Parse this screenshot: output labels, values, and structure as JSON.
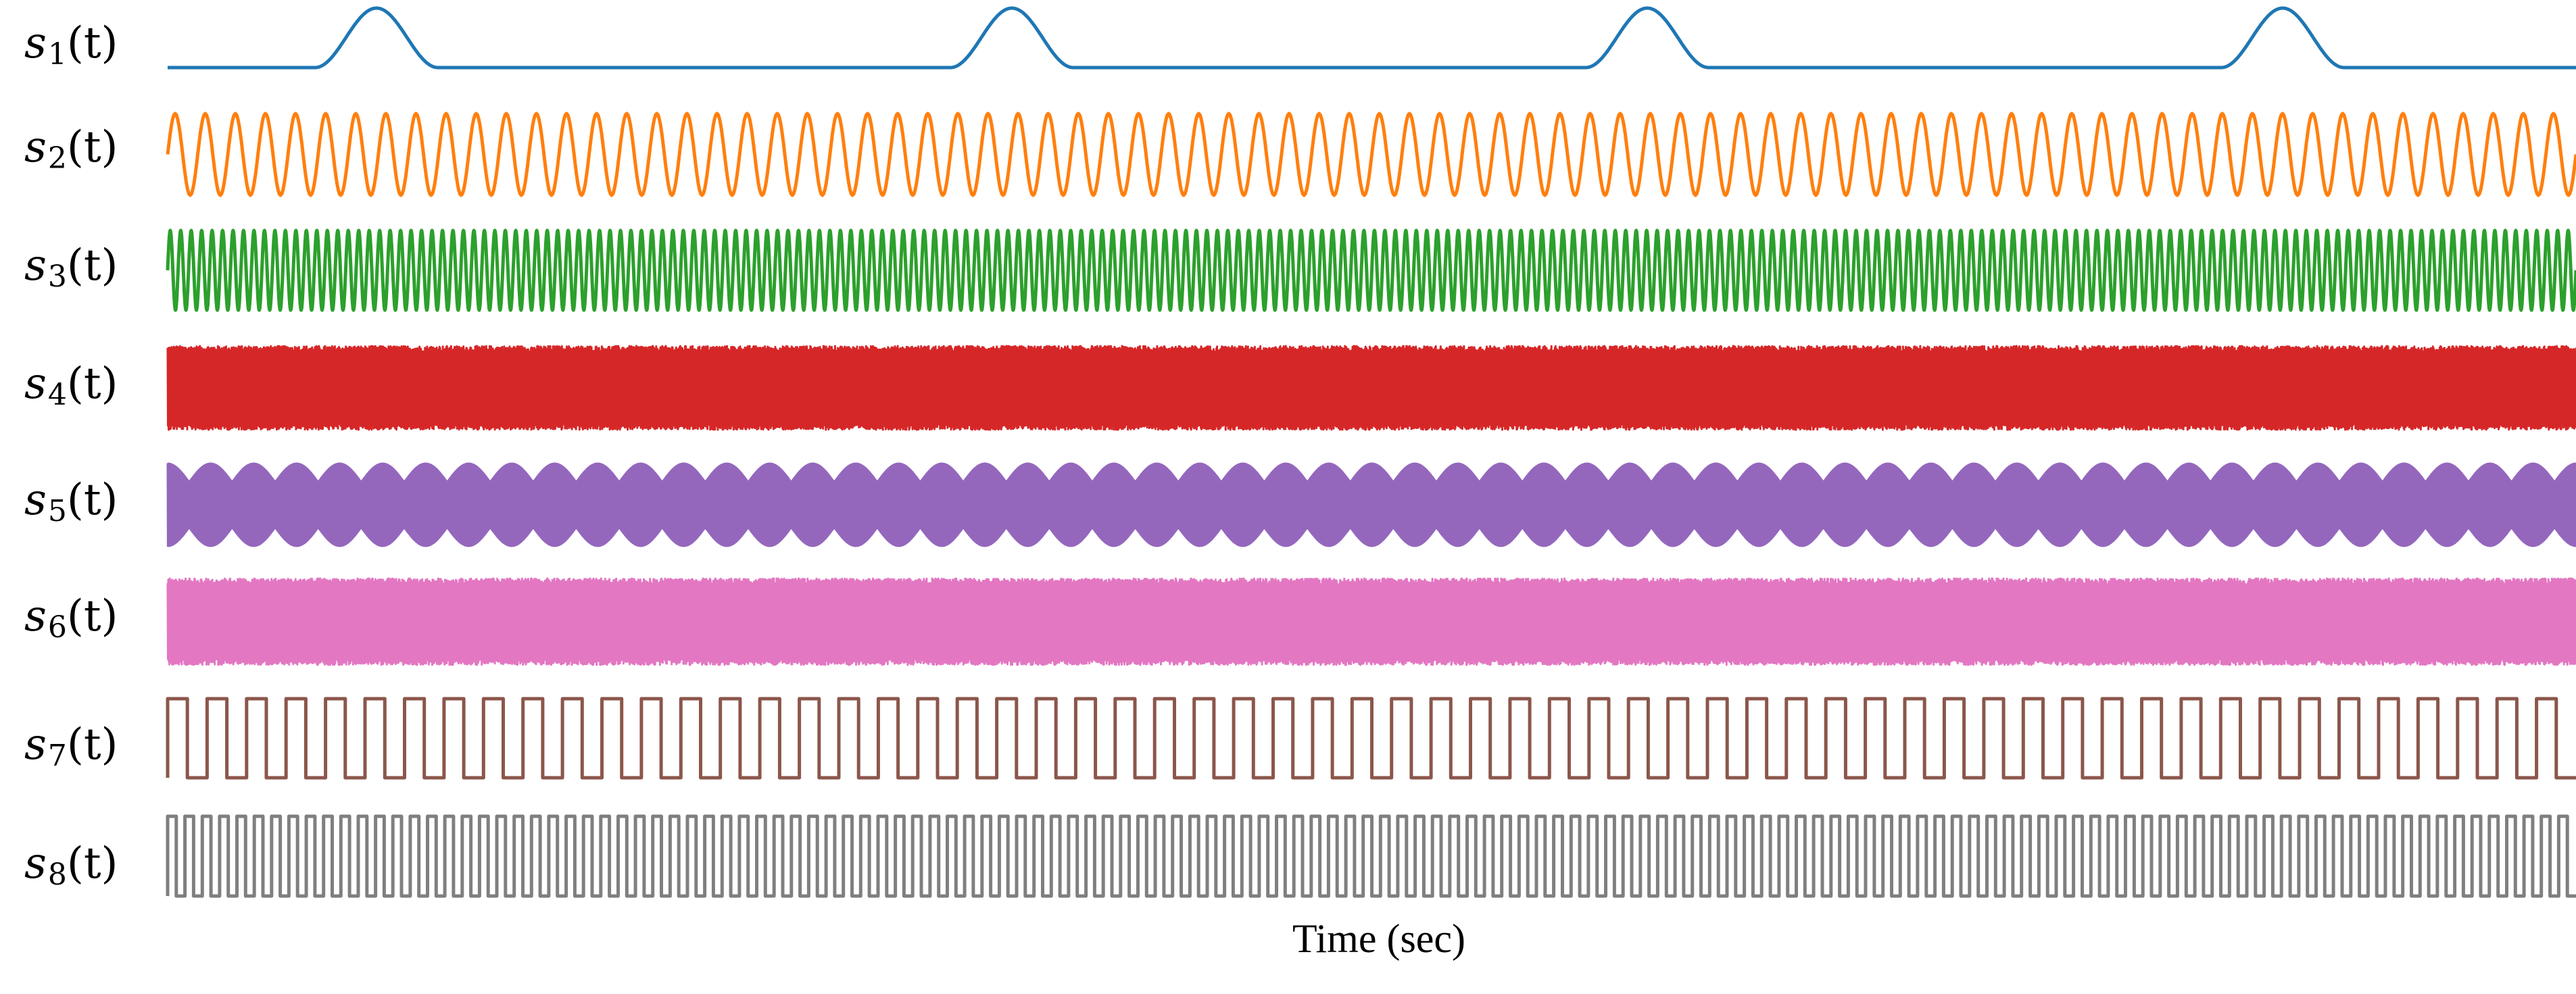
{
  "chart_data": {
    "type": "line",
    "xlabel": "Time (sec)",
    "ylabel": "",
    "title": "",
    "grid": false,
    "legend": "none",
    "series": [
      {
        "name": "s1",
        "label_base": "s",
        "label_index": "1",
        "label_arg": "(t)",
        "color": "#1f77b4",
        "waveform": "periodic raised-cosine pulse",
        "pulses": 4
      },
      {
        "name": "s2",
        "label_base": "s",
        "label_index": "2",
        "label_arg": "(t)",
        "color": "#ff7f0e",
        "waveform": "sinusoid",
        "cycles": 80
      },
      {
        "name": "s3",
        "label_base": "s",
        "label_index": "3",
        "label_arg": "(t)",
        "color": "#2ca02c",
        "waveform": "high-frequency sinusoid",
        "cycles": 230
      },
      {
        "name": "s4",
        "label_base": "s",
        "label_index": "4",
        "label_arg": "(t)",
        "color": "#d62728",
        "waveform": "noise"
      },
      {
        "name": "s5",
        "label_base": "s",
        "label_index": "5",
        "label_arg": "(t)",
        "color": "#9467bd",
        "waveform": "amplitude-modulated sinusoid",
        "envelope_cycles": 56
      },
      {
        "name": "s6",
        "label_base": "s",
        "label_index": "6",
        "label_arg": "(t)",
        "color": "#e377c2",
        "waveform": "dense multi-tone"
      },
      {
        "name": "s7",
        "label_base": "s",
        "label_index": "7",
        "label_arg": "(t)",
        "color": "#8c564b",
        "waveform": "square wave",
        "cycles": 61
      },
      {
        "name": "s8",
        "label_base": "s",
        "label_index": "8",
        "label_arg": "(t)",
        "color": "#7f7f7f",
        "waveform": "high-frequency square wave",
        "cycles": 139
      }
    ]
  }
}
